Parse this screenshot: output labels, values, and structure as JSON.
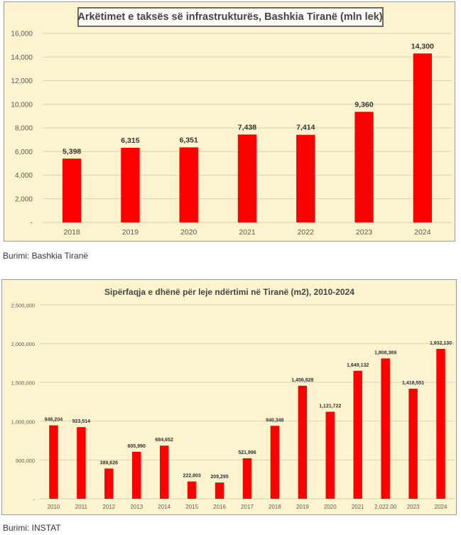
{
  "colors": {
    "bar": "#ff0000",
    "background": "#fdf3cf",
    "grid": "#d9d2b4",
    "text": "#595959"
  },
  "chart_data": [
    {
      "type": "bar",
      "title": "Arkëtimet e taksës së infrastrukturës, Bashkia Tiranë (mln lek)",
      "categories": [
        "2018",
        "2019",
        "2020",
        "2021",
        "2022",
        "2023",
        "2024"
      ],
      "values": [
        5398,
        6315,
        6351,
        7438,
        7414,
        9360,
        14300
      ],
      "data_labels": [
        "5,398",
        "6,315",
        "6,351",
        "7,438",
        "7,414",
        "9,360",
        "14,300"
      ],
      "yticks": [
        "-",
        "2,000",
        "4,000",
        "6,000",
        "8,000",
        "10,000",
        "12,000",
        "14,000",
        "16,000"
      ],
      "ylim": [
        0,
        16000
      ],
      "grid": true,
      "legend": "none"
    },
    {
      "type": "bar",
      "title": "Sipërfaqja e dhënë për leje ndërtimi në Tiranë (m2), 2010-2024",
      "categories": [
        "2010",
        "2011",
        "2012",
        "2013",
        "2014",
        "2015",
        "2016",
        "2017",
        "2018",
        "2019",
        "2020",
        "2021",
        "2,022.00",
        "2023",
        "2024"
      ],
      "values": [
        946204,
        923514,
        389626,
        605990,
        684652,
        222803,
        209295,
        521996,
        940348,
        1456828,
        1121722,
        1649132,
        1808369,
        1418551,
        1932130
      ],
      "data_labels": [
        "946,204",
        "923,514",
        "389,626",
        "605,990",
        "684,652",
        "222,803",
        "209,295",
        "521,996",
        "940,348",
        "1,456,828",
        "1,121,722",
        "1,649,132",
        "1,808,369",
        "1,418,551",
        "1,932,130"
      ],
      "yticks": [
        "-",
        "500,000",
        "1,000,000",
        "1,500,000",
        "2,000,000",
        "2,500,000"
      ],
      "ylim": [
        0,
        2500000
      ],
      "grid": true,
      "legend": "none"
    }
  ],
  "sources": [
    "Burimi: Bashkia Tiranë",
    "Burimi: INSTAT"
  ]
}
